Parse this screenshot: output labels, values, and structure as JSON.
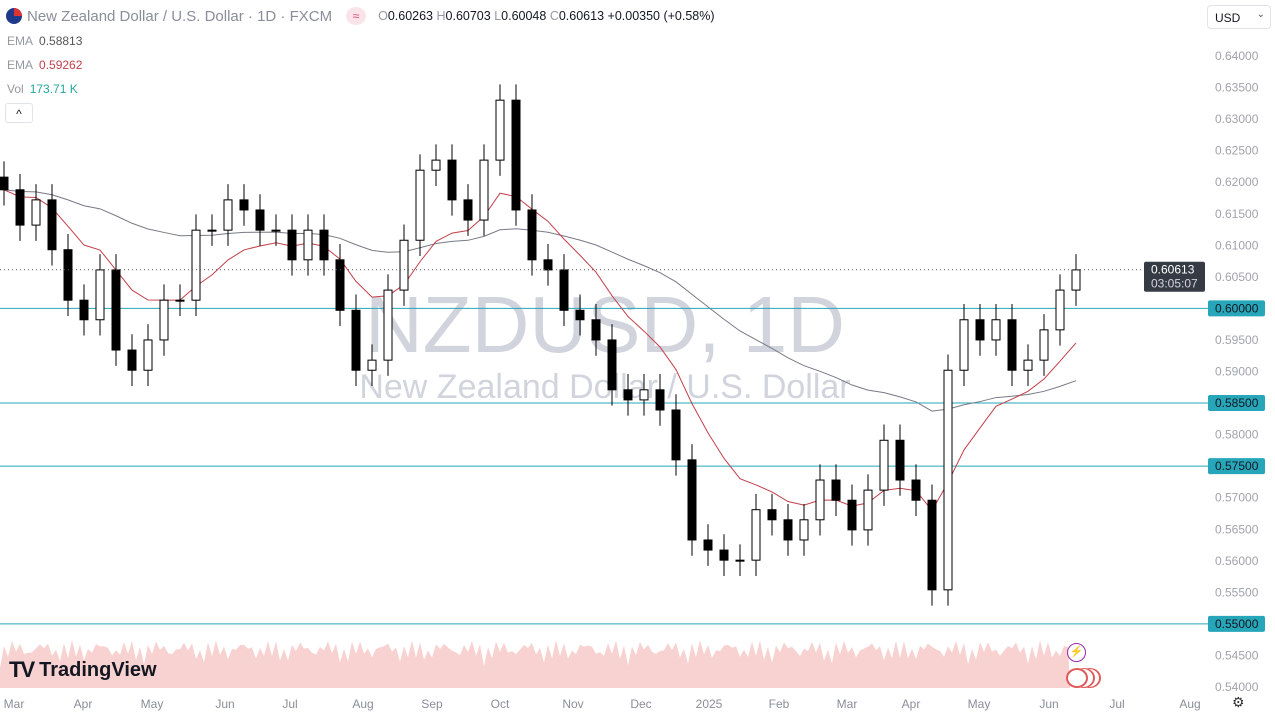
{
  "header": {
    "title": "New Zealand Dollar / U.S. Dollar · 1D · FXCM",
    "flag_icon": "nz-us-flag",
    "badge_icon": "approx-icon",
    "ohlc": {
      "o_label": "O",
      "o": "0.60263",
      "h_label": "H",
      "h": "0.60703",
      "l_label": "L",
      "l": "0.60048",
      "c_label": "C",
      "c": "0.60613",
      "change": "+0.00350 (+0.58%)"
    }
  },
  "indicators": [
    {
      "name": "EMA",
      "value": "0.58813",
      "color": "#787b86"
    },
    {
      "name": "EMA",
      "value": "0.59262",
      "color": "#c2404a"
    },
    {
      "name": "Vol",
      "value": "173.71 K",
      "color": "#26a69a"
    }
  ],
  "currency": "USD",
  "watermark": {
    "symbol": "NZDUSD, 1D",
    "name": "New Zealand Dollar / U.S. Dollar"
  },
  "logo": "TradingView",
  "current_price": {
    "value": "0.60613",
    "countdown": "03:05:07"
  },
  "chart_data": {
    "type": "candlestick",
    "ylim": [
      0.54,
      0.64
    ],
    "y_ticks": [
      "0.64000",
      "0.63500",
      "0.63000",
      "0.62500",
      "0.62000",
      "0.61500",
      "0.61000",
      "0.60500",
      "0.60000",
      "0.59500",
      "0.59000",
      "0.58500",
      "0.58000",
      "0.57500",
      "0.57000",
      "0.56500",
      "0.56000",
      "0.55500",
      "0.55000",
      "0.54500",
      "0.54000"
    ],
    "x_ticks": [
      "Mar",
      "Apr",
      "May",
      "Jun",
      "Jul",
      "Aug",
      "Sep",
      "Oct",
      "Nov",
      "Dec",
      "2025",
      "Feb",
      "Mar",
      "Apr",
      "May",
      "Jun",
      "Jul",
      "Aug"
    ],
    "horizontal_levels": [
      "0.60000",
      "0.58500",
      "0.57500",
      "0.55000"
    ],
    "level_color": "#26a6b8",
    "closes": [
      0.6188,
      0.6132,
      0.6172,
      0.6093,
      0.6013,
      0.5982,
      0.6061,
      0.5934,
      0.5902,
      0.595,
      0.6013,
      0.6013,
      0.6124,
      0.6124,
      0.6172,
      0.6156,
      0.6124,
      0.6124,
      0.6077,
      0.6124,
      0.6077,
      0.5997,
      0.5902,
      0.5918,
      0.6029,
      0.6108,
      0.6219,
      0.6235,
      0.6172,
      0.614,
      0.6235,
      0.633,
      0.6156,
      0.6077,
      0.6061,
      0.5997,
      0.5982,
      0.595,
      0.5871,
      0.5855,
      0.5871,
      0.5839,
      0.576,
      0.5633,
      0.5617,
      0.5601,
      0.5601,
      0.5681,
      0.5665,
      0.5633,
      0.5665,
      0.5728,
      0.5696,
      0.5649,
      0.5712,
      0.5791,
      0.5728,
      0.5696,
      0.5554,
      0.5902,
      0.5982,
      0.595,
      0.5982,
      0.5902,
      0.5918,
      0.5966,
      0.6029,
      0.6061
    ],
    "ema_colors": {
      "fast": "#c2404a",
      "slow": "#787b86"
    }
  }
}
